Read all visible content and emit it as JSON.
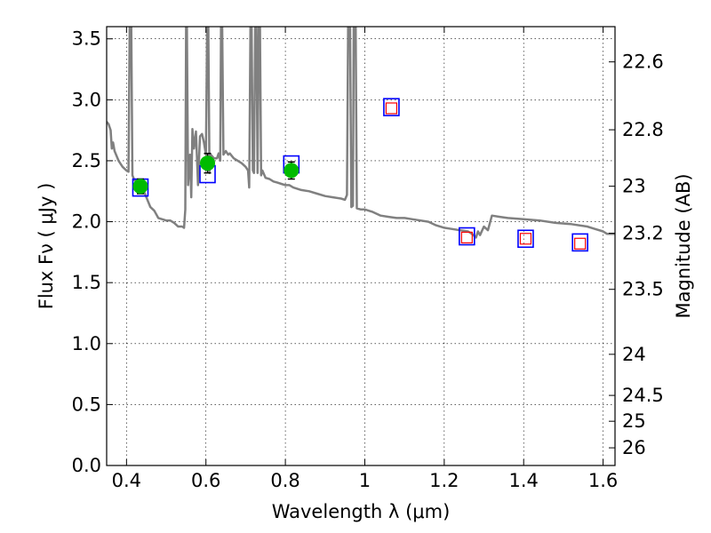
{
  "chart_data": {
    "type": "scatter",
    "xlabel": "Wavelength  λ (μm)",
    "ylabel_left": "Flux  Fν  ( μJy )",
    "ylabel_right": "Magnitude (AB)",
    "xlim": [
      0.35,
      1.63
    ],
    "ylim": [
      0.0,
      3.6
    ],
    "grid": true,
    "x_ticks": [
      {
        "value": 0.4,
        "label": "0.4"
      },
      {
        "value": 0.6,
        "label": "0.6"
      },
      {
        "value": 0.8,
        "label": "0.8"
      },
      {
        "value": 1.0,
        "label": "1"
      },
      {
        "value": 1.2,
        "label": "1.2"
      },
      {
        "value": 1.4,
        "label": "1.4"
      },
      {
        "value": 1.6,
        "label": "1.6"
      }
    ],
    "y_ticks": [
      {
        "value": 0.0,
        "label": "0.0"
      },
      {
        "value": 0.5,
        "label": "0.5"
      },
      {
        "value": 1.0,
        "label": "1.0"
      },
      {
        "value": 1.5,
        "label": "1.5"
      },
      {
        "value": 2.0,
        "label": "2.0"
      },
      {
        "value": 2.5,
        "label": "2.5"
      },
      {
        "value": 3.0,
        "label": "3.0"
      },
      {
        "value": 3.5,
        "label": "3.5"
      }
    ],
    "right_ticks": [
      {
        "flux": 3.311,
        "label": "22.6"
      },
      {
        "flux": 2.754,
        "label": "22.8"
      },
      {
        "flux": 2.291,
        "label": "23"
      },
      {
        "flux": 1.905,
        "label": "23.2"
      },
      {
        "flux": 1.445,
        "label": "23.5"
      },
      {
        "flux": 0.912,
        "label": "24"
      },
      {
        "flux": 0.575,
        "label": "24.5"
      },
      {
        "flux": 0.363,
        "label": "25"
      },
      {
        "flux": 0.145,
        "label": "26"
      }
    ],
    "series": [
      {
        "kind": "model_spectrum",
        "color": "#808080",
        "points": [
          [
            0.35,
            2.82
          ],
          [
            0.355,
            2.8
          ],
          [
            0.36,
            2.75
          ],
          [
            0.363,
            2.6
          ],
          [
            0.366,
            2.65
          ],
          [
            0.37,
            2.58
          ],
          [
            0.38,
            2.5
          ],
          [
            0.39,
            2.45
          ],
          [
            0.4,
            2.42
          ],
          [
            0.405,
            2.41
          ],
          [
            0.408,
            3.6
          ],
          [
            0.412,
            3.6
          ],
          [
            0.415,
            2.38
          ],
          [
            0.42,
            2.34
          ],
          [
            0.43,
            2.32
          ],
          [
            0.44,
            2.28
          ],
          [
            0.45,
            2.2
          ],
          [
            0.46,
            2.12
          ],
          [
            0.47,
            2.09
          ],
          [
            0.48,
            2.03
          ],
          [
            0.49,
            2.02
          ],
          [
            0.5,
            2.01
          ],
          [
            0.51,
            2.01
          ],
          [
            0.52,
            1.99
          ],
          [
            0.53,
            1.96
          ],
          [
            0.54,
            1.96
          ],
          [
            0.545,
            1.95
          ],
          [
            0.548,
            2.1
          ],
          [
            0.55,
            3.6
          ],
          [
            0.552,
            3.6
          ],
          [
            0.555,
            2.3
          ],
          [
            0.56,
            2.55
          ],
          [
            0.563,
            2.2
          ],
          [
            0.566,
            2.76
          ],
          [
            0.57,
            2.6
          ],
          [
            0.575,
            2.74
          ],
          [
            0.58,
            2.3
          ],
          [
            0.585,
            2.7
          ],
          [
            0.59,
            2.72
          ],
          [
            0.595,
            2.65
          ],
          [
            0.6,
            2.55
          ],
          [
            0.603,
            3.6
          ],
          [
            0.606,
            3.6
          ],
          [
            0.609,
            2.4
          ],
          [
            0.612,
            2.55
          ],
          [
            0.62,
            2.52
          ],
          [
            0.628,
            2.52
          ],
          [
            0.632,
            2.56
          ],
          [
            0.636,
            2.5
          ],
          [
            0.638,
            3.6
          ],
          [
            0.641,
            3.6
          ],
          [
            0.644,
            2.55
          ],
          [
            0.65,
            2.58
          ],
          [
            0.656,
            2.55
          ],
          [
            0.66,
            2.56
          ],
          [
            0.67,
            2.52
          ],
          [
            0.68,
            2.5
          ],
          [
            0.69,
            2.48
          ],
          [
            0.7,
            2.45
          ],
          [
            0.706,
            2.42
          ],
          [
            0.709,
            2.28
          ],
          [
            0.712,
            3.6
          ],
          [
            0.715,
            3.6
          ],
          [
            0.718,
            2.42
          ],
          [
            0.721,
            2.4
          ],
          [
            0.724,
            3.6
          ],
          [
            0.727,
            3.6
          ],
          [
            0.73,
            2.4
          ],
          [
            0.733,
            3.6
          ],
          [
            0.736,
            3.6
          ],
          [
            0.739,
            2.38
          ],
          [
            0.742,
            2.42
          ],
          [
            0.75,
            2.36
          ],
          [
            0.76,
            2.35
          ],
          [
            0.77,
            2.33
          ],
          [
            0.78,
            2.32
          ],
          [
            0.79,
            2.31
          ],
          [
            0.8,
            2.3
          ],
          [
            0.81,
            2.3
          ],
          [
            0.82,
            2.28
          ],
          [
            0.84,
            2.26
          ],
          [
            0.86,
            2.25
          ],
          [
            0.88,
            2.23
          ],
          [
            0.9,
            2.21
          ],
          [
            0.92,
            2.2
          ],
          [
            0.94,
            2.19
          ],
          [
            0.95,
            2.18
          ],
          [
            0.955,
            2.22
          ],
          [
            0.958,
            3.6
          ],
          [
            0.963,
            3.6
          ],
          [
            0.966,
            2.12
          ],
          [
            0.97,
            2.13
          ],
          [
            0.972,
            3.6
          ],
          [
            0.977,
            3.6
          ],
          [
            0.98,
            2.11
          ],
          [
            0.99,
            2.1
          ],
          [
            1.0,
            2.1
          ],
          [
            1.02,
            2.08
          ],
          [
            1.04,
            2.05
          ],
          [
            1.06,
            2.04
          ],
          [
            1.08,
            2.03
          ],
          [
            1.1,
            2.03
          ],
          [
            1.12,
            2.02
          ],
          [
            1.14,
            2.01
          ],
          [
            1.16,
            2.0
          ],
          [
            1.18,
            1.97
          ],
          [
            1.2,
            1.95
          ],
          [
            1.22,
            1.94
          ],
          [
            1.24,
            1.93
          ],
          [
            1.26,
            1.92
          ],
          [
            1.27,
            1.9
          ],
          [
            1.28,
            1.87
          ],
          [
            1.285,
            1.92
          ],
          [
            1.29,
            1.89
          ],
          [
            1.3,
            1.96
          ],
          [
            1.31,
            1.93
          ],
          [
            1.32,
            2.05
          ],
          [
            1.34,
            2.04
          ],
          [
            1.36,
            2.03
          ],
          [
            1.4,
            2.02
          ],
          [
            1.44,
            2.01
          ],
          [
            1.48,
            1.99
          ],
          [
            1.52,
            1.98
          ],
          [
            1.56,
            1.96
          ],
          [
            1.58,
            1.94
          ],
          [
            1.6,
            1.92
          ],
          [
            1.61,
            1.9
          ],
          [
            1.63,
            1.9
          ]
        ]
      },
      {
        "kind": "model_photometry",
        "marker": "open-square",
        "color": "#0000ff",
        "points": [
          [
            0.435,
            2.28
          ],
          [
            0.604,
            2.39
          ],
          [
            0.815,
            2.47
          ],
          [
            1.067,
            2.94
          ],
          [
            1.257,
            1.88
          ],
          [
            1.405,
            1.86
          ],
          [
            1.542,
            1.83
          ]
        ]
      },
      {
        "kind": "upper_limit_photometry",
        "marker": "open-square",
        "color": "#ff0000",
        "points": [
          [
            1.067,
            2.93
          ],
          [
            1.257,
            1.87
          ],
          [
            1.405,
            1.86
          ],
          [
            1.542,
            1.82
          ]
        ]
      },
      {
        "kind": "observed_photometry",
        "marker": "filled-circle",
        "color": "#00bb00",
        "points": [
          {
            "x": 0.435,
            "y": 2.29,
            "err": 0.06
          },
          {
            "x": 0.604,
            "y": 2.48,
            "err": 0.08
          },
          {
            "x": 0.815,
            "y": 2.42,
            "err": 0.07
          }
        ]
      }
    ]
  }
}
